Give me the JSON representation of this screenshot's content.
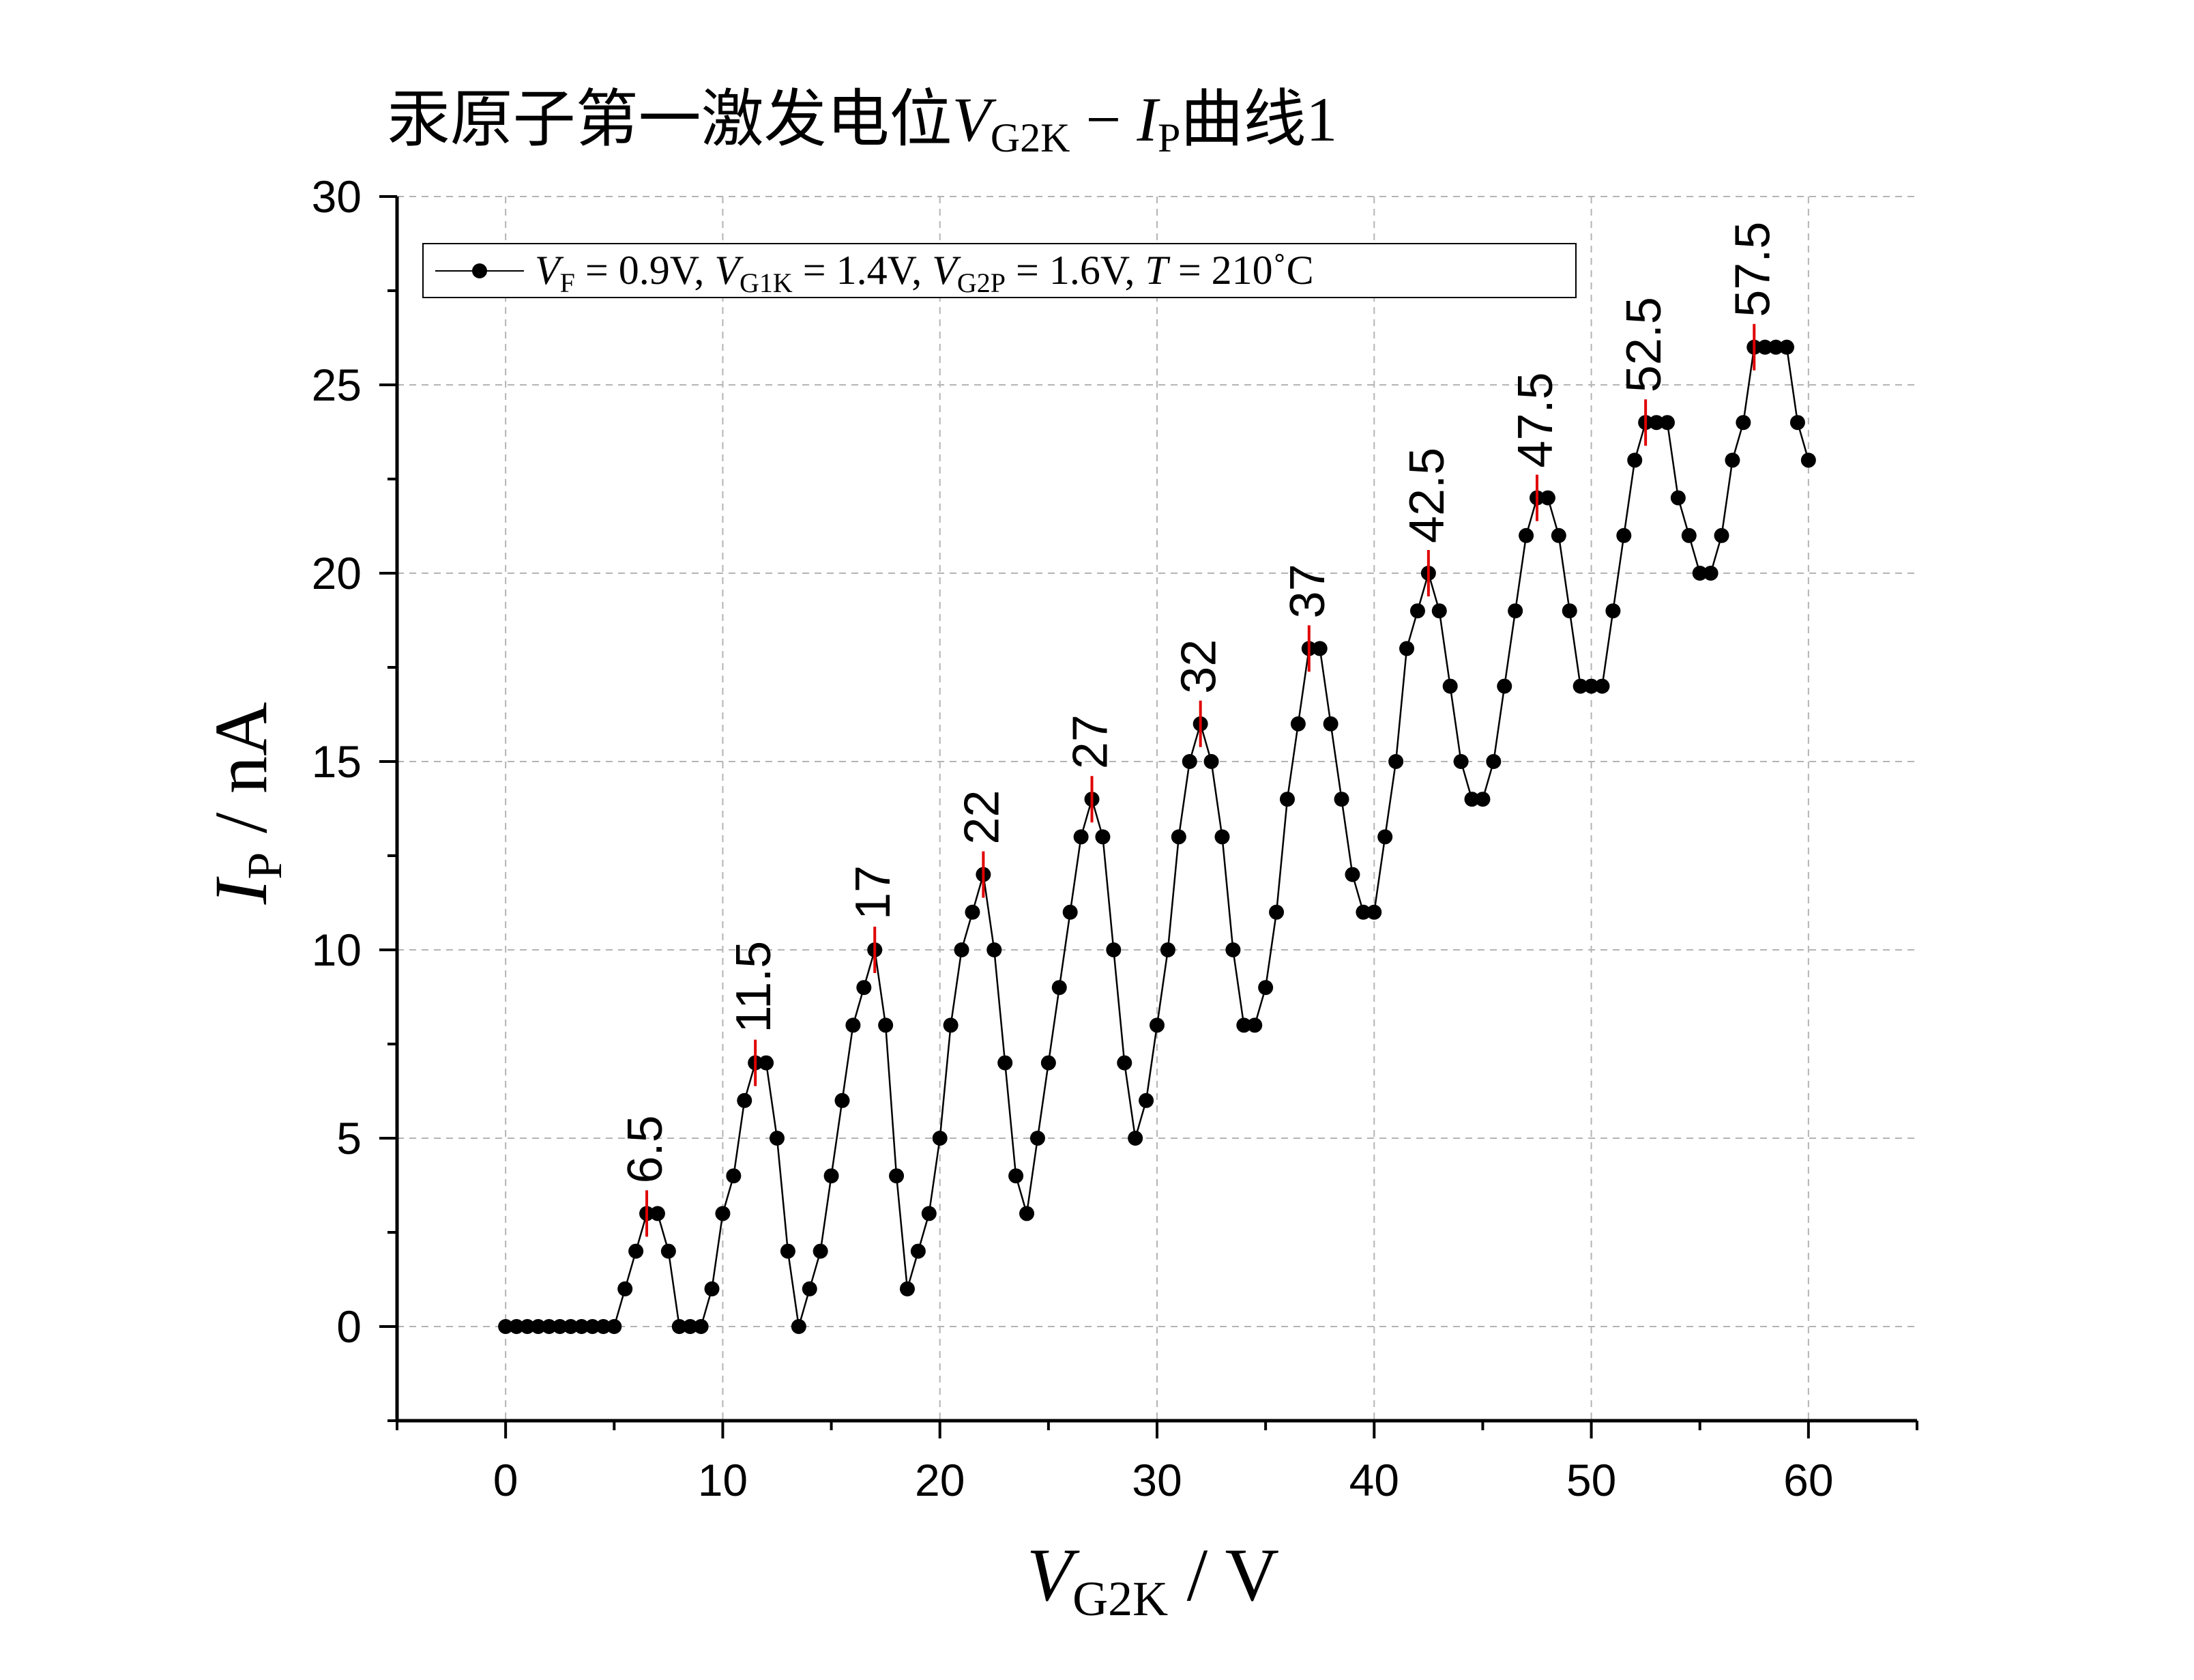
{
  "chart_data": {
    "type": "line",
    "title": {
      "prefix": "汞原子第一激发电位",
      "var1": "V",
      "var1_sub": "G2K",
      "minus": " − ",
      "var2": "I",
      "var2_sub": "P",
      "suffix": "曲线1"
    },
    "xlabel": {
      "var": "V",
      "sub": "G2K",
      "unit": " / V"
    },
    "ylabel": {
      "var": "I",
      "sub": "P",
      "unit": " / nA"
    },
    "xlim": [
      -5,
      65
    ],
    "ylim": [
      -2.5,
      30
    ],
    "x_ticks": [
      "0",
      "10",
      "20",
      "30",
      "40",
      "50",
      "60"
    ],
    "y_ticks": [
      "0",
      "5",
      "10",
      "15",
      "20",
      "25",
      "30"
    ],
    "grid": true,
    "legend_position": "top-left",
    "series": [
      {
        "legend": {
          "vf": "V",
          "vf_sub": "F",
          "vf_val": " = 0.9V, ",
          "vg1": "V",
          "vg1_sub": "G1K",
          "vg1_val": " = 1.4V, ",
          "vg2": "V",
          "vg2_sub": "G2P",
          "vg2_val": " = 1.6V, ",
          "t": "T",
          "t_val": " = 210˚C"
        },
        "color": "#000000",
        "x": [
          0,
          0.5,
          1,
          1.5,
          2,
          2.5,
          3,
          3.5,
          4,
          4.5,
          5,
          5.5,
          6,
          6.5,
          7,
          7.5,
          8,
          8.5,
          9,
          9.5,
          10,
          10.5,
          11,
          11.5,
          12,
          12.5,
          13,
          13.5,
          14,
          14.5,
          15,
          15.5,
          16,
          16.5,
          17,
          17.5,
          18,
          18.5,
          19,
          19.5,
          20,
          20.5,
          21,
          21.5,
          22,
          22.5,
          23,
          23.5,
          24,
          24.5,
          25,
          25.5,
          26,
          26.5,
          27,
          27.5,
          28,
          28.5,
          29,
          29.5,
          30,
          30.5,
          31,
          31.5,
          32,
          32.5,
          33,
          33.5,
          34,
          34.5,
          35,
          35.5,
          36,
          36.5,
          37,
          37.5,
          38,
          38.5,
          39,
          39.5,
          40,
          40.5,
          41,
          41.5,
          42,
          42.5,
          43,
          43.5,
          44,
          44.5,
          45,
          45.5,
          46,
          46.5,
          47,
          47.5,
          48,
          48.5,
          49,
          49.5,
          50,
          50.5,
          51,
          51.5,
          52,
          52.5,
          53,
          53.5,
          54,
          54.5,
          55,
          55.5,
          56,
          56.5,
          57,
          57.5,
          58,
          58.5,
          59,
          59.5,
          60
        ],
        "y": [
          0,
          0,
          0,
          0,
          0,
          0,
          0,
          0,
          0,
          0,
          0,
          1,
          2,
          3,
          3,
          2,
          0,
          0,
          0,
          1,
          3,
          4,
          6,
          7,
          7,
          5,
          2,
          0,
          1,
          2,
          4,
          6,
          8,
          9,
          10,
          8,
          4,
          1,
          2,
          3,
          5,
          8,
          10,
          11,
          12,
          10,
          7,
          4,
          3,
          5,
          7,
          9,
          11,
          13,
          14,
          13,
          10,
          7,
          5,
          6,
          8,
          10,
          13,
          15,
          16,
          15,
          13,
          10,
          8,
          8,
          9,
          11,
          14,
          16,
          18,
          18,
          16,
          14,
          12,
          11,
          11,
          13,
          15,
          18,
          19,
          20,
          19,
          17,
          15,
          14,
          14,
          15,
          17,
          19,
          21,
          22,
          22,
          21,
          19,
          17,
          17,
          17,
          19,
          21,
          23,
          24,
          24,
          24,
          22,
          21,
          20,
          20,
          21,
          23,
          24,
          26,
          26,
          26,
          26,
          24,
          23
        ]
      }
    ],
    "peak_annotations": [
      {
        "x": 6.5,
        "y": 3,
        "label": "6.5"
      },
      {
        "x": 11.5,
        "y": 7,
        "label": "11.5"
      },
      {
        "x": 17,
        "y": 10,
        "label": "17"
      },
      {
        "x": 22,
        "y": 12,
        "label": "22"
      },
      {
        "x": 27,
        "y": 14,
        "label": "27"
      },
      {
        "x": 32,
        "y": 16,
        "label": "32"
      },
      {
        "x": 37,
        "y": 18,
        "label": "37"
      },
      {
        "x": 42.5,
        "y": 20,
        "label": "42.5"
      },
      {
        "x": 47.5,
        "y": 22,
        "label": "47.5"
      },
      {
        "x": 52.5,
        "y": 24,
        "label": "52.5"
      },
      {
        "x": 57.5,
        "y": 26,
        "label": "57.5"
      }
    ],
    "colors": {
      "series": "#000000",
      "peak_marker": "#e00000",
      "grid": "#b4b4b4"
    }
  }
}
